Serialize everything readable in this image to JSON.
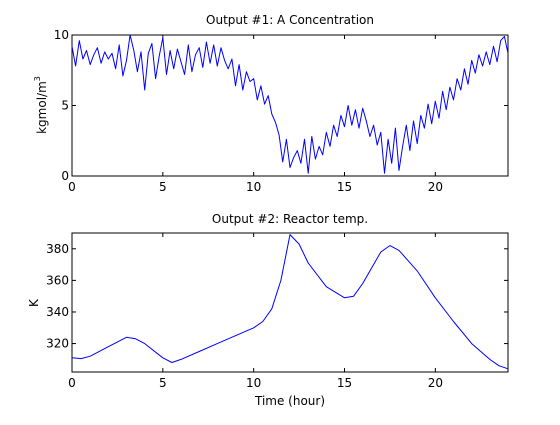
{
  "chart_data": [
    {
      "type": "line",
      "title": "Output #1: A Concentration",
      "xlabel": "",
      "ylabel": "kgmol/m",
      "ylabel_sup": "3",
      "xlim": [
        0,
        24
      ],
      "ylim": [
        0,
        10
      ],
      "xticks": [
        0,
        5,
        10,
        15,
        20
      ],
      "xtick_labels": [
        "0",
        "5",
        "10",
        "15",
        "20"
      ],
      "yticks": [
        0,
        5,
        10
      ],
      "ytick_labels": [
        "0",
        "5",
        "10"
      ],
      "grid": false,
      "color": "#0000ff",
      "x": [
        0.0,
        0.2,
        0.4,
        0.6,
        0.8,
        1.0,
        1.2,
        1.4,
        1.6,
        1.8,
        2.0,
        2.2,
        2.4,
        2.6,
        2.8,
        3.0,
        3.2,
        3.4,
        3.6,
        3.8,
        4.0,
        4.2,
        4.4,
        4.6,
        4.8,
        5.0,
        5.2,
        5.4,
        5.6,
        5.8,
        6.0,
        6.2,
        6.4,
        6.6,
        6.8,
        7.0,
        7.2,
        7.4,
        7.6,
        7.8,
        8.0,
        8.2,
        8.4,
        8.6,
        8.8,
        9.0,
        9.2,
        9.4,
        9.6,
        9.8,
        10.0,
        10.2,
        10.4,
        10.6,
        10.8,
        11.0,
        11.2,
        11.4,
        11.6,
        11.8,
        12.0,
        12.2,
        12.4,
        12.6,
        12.8,
        13.0,
        13.2,
        13.4,
        13.6,
        13.8,
        14.0,
        14.2,
        14.4,
        14.6,
        14.8,
        15.0,
        15.2,
        15.4,
        15.6,
        15.8,
        16.0,
        16.2,
        16.4,
        16.6,
        16.8,
        17.0,
        17.2,
        17.4,
        17.6,
        17.8,
        18.0,
        18.2,
        18.4,
        18.6,
        18.8,
        19.0,
        19.2,
        19.4,
        19.6,
        19.8,
        20.0,
        20.2,
        20.4,
        20.6,
        20.8,
        21.0,
        21.2,
        21.4,
        21.6,
        21.8,
        22.0,
        22.2,
        22.4,
        22.6,
        22.8,
        23.0,
        23.2,
        23.4,
        23.6,
        23.8,
        24.0
      ],
      "values": [
        9.2,
        7.8,
        9.6,
        8.3,
        8.9,
        7.9,
        8.6,
        9.1,
        8.0,
        8.8,
        8.3,
        8.7,
        7.6,
        9.3,
        7.1,
        8.2,
        10.2,
        8.9,
        7.4,
        8.8,
        6.1,
        8.7,
        9.4,
        6.9,
        8.5,
        9.8,
        7.2,
        8.9,
        7.6,
        9.0,
        8.1,
        7.2,
        9.3,
        7.4,
        8.6,
        9.1,
        7.7,
        9.5,
        8.0,
        9.3,
        7.8,
        9.1,
        8.2,
        7.6,
        8.3,
        6.4,
        7.9,
        6.1,
        7.4,
        6.7,
        6.9,
        5.4,
        6.4,
        5.1,
        5.7,
        4.4,
        3.8,
        2.9,
        1.0,
        2.6,
        0.6,
        1.3,
        1.8,
        0.9,
        2.6,
        0.2,
        2.8,
        1.2,
        2.1,
        1.5,
        3.1,
        2.1,
        3.6,
        2.8,
        4.3,
        3.5,
        5.0,
        3.6,
        4.7,
        3.4,
        4.8,
        3.9,
        2.8,
        3.6,
        2.2,
        3.1,
        0.2,
        2.6,
        0.9,
        3.4,
        0.4,
        2.1,
        3.6,
        1.8,
        3.9,
        2.3,
        4.3,
        3.4,
        5.1,
        3.7,
        5.3,
        4.1,
        6.0,
        4.7,
        6.3,
        5.4,
        6.9,
        6.1,
        7.6,
        6.5,
        8.2,
        7.3,
        8.6,
        7.8,
        8.8,
        7.9,
        9.2,
        8.1,
        9.6,
        9.9,
        8.7
      ]
    },
    {
      "type": "line",
      "title": "Output #2: Reactor temp.",
      "xlabel": "Time (hour)",
      "ylabel": "K",
      "xlim": [
        0,
        24
      ],
      "ylim": [
        302,
        390
      ],
      "xticks": [
        0,
        5,
        10,
        15,
        20
      ],
      "xtick_labels": [
        "0",
        "5",
        "10",
        "15",
        "20"
      ],
      "yticks": [
        320,
        340,
        360,
        380
      ],
      "ytick_labels": [
        "320",
        "340",
        "360",
        "380"
      ],
      "grid": false,
      "color": "#0000ff",
      "x": [
        0,
        0.5,
        1,
        2,
        3,
        3.5,
        4,
        5,
        5.5,
        6,
        7,
        8,
        9,
        10,
        10.5,
        11,
        11.5,
        12,
        12.5,
        13,
        14,
        15,
        15.5,
        16,
        17,
        17.5,
        18,
        19,
        20,
        21,
        22,
        23,
        23.5,
        24
      ],
      "values": [
        311,
        310.5,
        312,
        318,
        324,
        323,
        320,
        311,
        308,
        310,
        315,
        320,
        325,
        330,
        334,
        342,
        360,
        389,
        383,
        371,
        356,
        349,
        350,
        358,
        378,
        382,
        379,
        366,
        349,
        334,
        320,
        310,
        306,
        304
      ]
    }
  ]
}
